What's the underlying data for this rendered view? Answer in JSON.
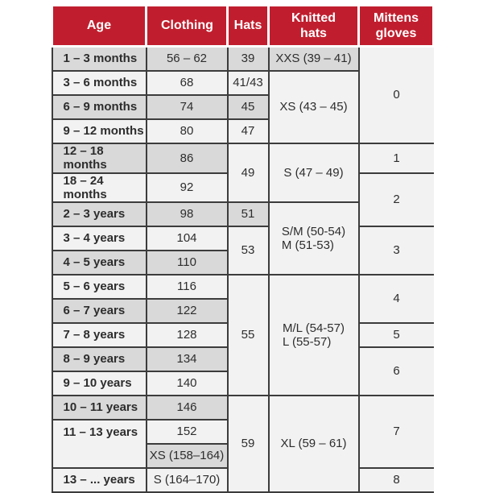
{
  "colors": {
    "header_red": "#c01e2e",
    "row_gray": "#d9d9d9",
    "row_light": "#f2f2f2",
    "border_dark": "#3c3c3c",
    "border_light": "#9a9a9a",
    "text": "#2d2d2d",
    "header_text": "#ffffff",
    "page_bg": "#ffffff"
  },
  "table": {
    "headers": [
      "Age",
      "Clothing",
      "Hats",
      "Knitted hats",
      "Mittens gloves"
    ],
    "rows": [
      {
        "age": "1 – 3 months",
        "clothing": "56 – 62",
        "hats": "39",
        "knitted": "XXS (39 – 41)",
        "mittens": "0"
      },
      {
        "age": "3 – 6 months",
        "clothing": "68",
        "hats": "41/43",
        "knitted": "XS (43 – 45)"
      },
      {
        "age": "6 – 9 months",
        "clothing": "74",
        "hats": "45"
      },
      {
        "age": "9 – 12 months",
        "clothing": "80",
        "hats": "47"
      },
      {
        "age": "12 – 18 months",
        "clothing": "86",
        "hats": "49",
        "knitted": "S (47 – 49)",
        "mittens": "1"
      },
      {
        "age": "18 – 24 months",
        "clothing": "92",
        "mittens": "2"
      },
      {
        "age": "2 – 3 years",
        "clothing": "98",
        "hats": "51",
        "knitted_line1": "S/M (50-54)",
        "knitted_line2": "M (51-53)"
      },
      {
        "age": "3 – 4 years",
        "clothing": "104",
        "hats": "53",
        "mittens": "3"
      },
      {
        "age": "4 – 5 years",
        "clothing": "110"
      },
      {
        "age": "5 – 6 years",
        "clothing": "116",
        "hats": "55",
        "knitted_line1": "M/L (54-57)",
        "knitted_line2": "L (55-57)",
        "mittens": "4"
      },
      {
        "age": "6 – 7 years",
        "clothing": "122"
      },
      {
        "age": "7 – 8 years",
        "clothing": "128",
        "mittens": "5"
      },
      {
        "age": "8 – 9 years",
        "clothing": "134",
        "mittens": "6"
      },
      {
        "age": "9 – 10 years",
        "clothing": "140"
      },
      {
        "age": "10 – 11 years",
        "clothing": "146",
        "hats": "59",
        "knitted": "XL (59 – 61)",
        "mittens": "7"
      },
      {
        "age": "11 – 13 years",
        "clothing": "152"
      },
      {
        "clothing": "XS (158–164)"
      },
      {
        "age": "13 – ... years",
        "clothing": "S (164–170)",
        "mittens": "8"
      }
    ]
  }
}
